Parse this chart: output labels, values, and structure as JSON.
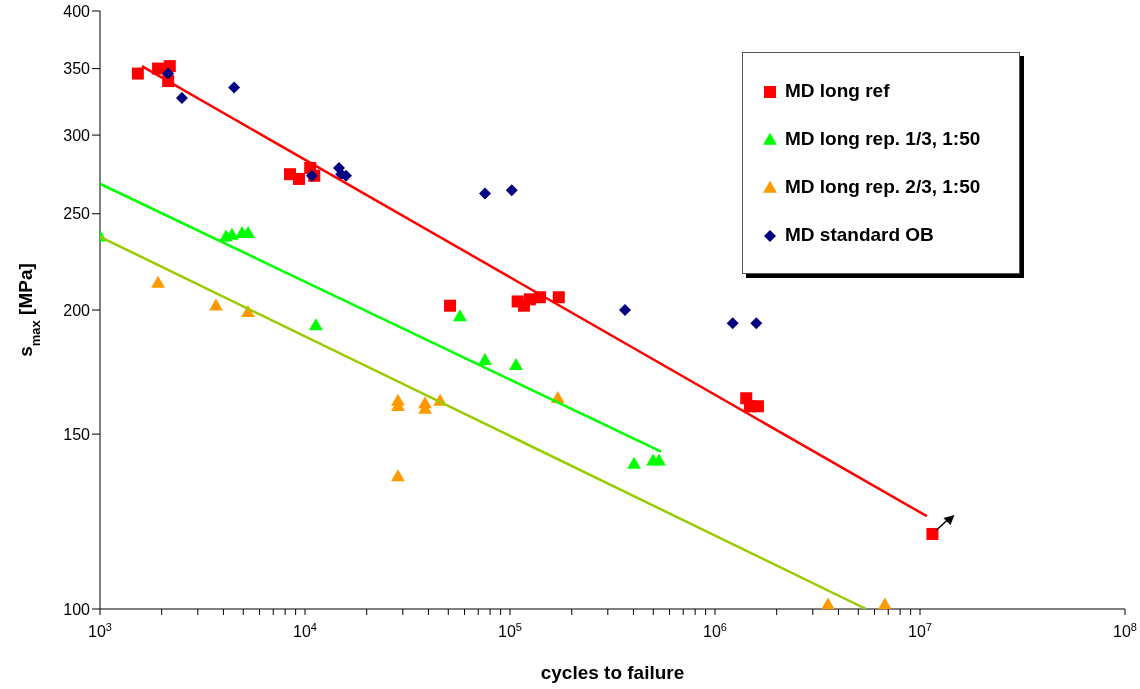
{
  "chart_data": {
    "type": "scatter",
    "xlabel": "cycles to failure",
    "ylabel": "s$_{max}$ [MPa]",
    "log": "xy",
    "legend": "top right",
    "xlim": [
      1000,
      100000000
    ],
    "ylim": [
      100,
      400
    ],
    "xticks": [
      {
        "value": 1000,
        "label": "10$^{3}$"
      },
      {
        "value": 2000,
        "label": null
      },
      {
        "value": 3000,
        "label": null
      },
      {
        "value": 4000,
        "label": null
      },
      {
        "value": 5000,
        "label": null
      },
      {
        "value": 6000,
        "label": null
      },
      {
        "value": 7000,
        "label": null
      },
      {
        "value": 8000,
        "label": null
      },
      {
        "value": 9000,
        "label": null
      },
      {
        "value": 10000,
        "label": "10$^{4}$"
      },
      {
        "value": 20000,
        "label": null
      },
      {
        "value": 30000,
        "label": null
      },
      {
        "value": 40000,
        "label": null
      },
      {
        "value": 50000,
        "label": null
      },
      {
        "value": 60000,
        "label": null
      },
      {
        "value": 70000,
        "label": null
      },
      {
        "value": 80000,
        "label": null
      },
      {
        "value": 90000,
        "label": null
      },
      {
        "value": 100000,
        "label": "10$^{5}$"
      },
      {
        "value": 200000,
        "label": null
      },
      {
        "value": 300000,
        "label": null
      },
      {
        "value": 400000,
        "label": null
      },
      {
        "value": 500000,
        "label": null
      },
      {
        "value": 600000,
        "label": null
      },
      {
        "value": 700000,
        "label": null
      },
      {
        "value": 800000,
        "label": null
      },
      {
        "value": 900000,
        "label": null
      },
      {
        "value": 1000000,
        "label": "10$^{6}$"
      },
      {
        "value": 2000000,
        "label": null
      },
      {
        "value": 3000000,
        "label": null
      },
      {
        "value": 4000000,
        "label": null
      },
      {
        "value": 5000000,
        "label": null
      },
      {
        "value": 6000000,
        "label": null
      },
      {
        "value": 7000000,
        "label": null
      },
      {
        "value": 8000000,
        "label": null
      },
      {
        "value": 9000000,
        "label": null
      },
      {
        "value": 10000000,
        "label": "10$^{7}$"
      },
      {
        "value": 100000000,
        "label": "10$^{8}$"
      }
    ],
    "yticks": [
      100,
      150,
      200,
      250,
      300,
      350,
      400
    ],
    "series": [
      {
        "name": "MD long ref",
        "marker": "square",
        "color": "#ff0000",
        "x": [
          1530,
          1920,
          2190,
          2150,
          8450,
          9350,
          10600,
          11100,
          51000,
          109000,
          117000,
          125000,
          140000,
          173000,
          1420000,
          1480000,
          1620000,
          11500000
        ],
        "values": [
          346,
          350,
          352,
          340,
          274,
          271,
          278,
          273,
          202,
          204,
          202,
          205,
          206,
          206,
          163,
          160,
          160,
          119
        ]
      },
      {
        "name": "MD long rep. 1/3, 1:50",
        "marker": "triangle",
        "color": "#00ff00",
        "x": [
          1000,
          4120,
          4400,
          4930,
          5280,
          11300,
          57000,
          75500,
          107000,
          403000,
          499000,
          533000
        ],
        "values": [
          237,
          237,
          238,
          239,
          239,
          193,
          197,
          178,
          176,
          140,
          141,
          141
        ]
      },
      {
        "name": "MD long rep. 2/3, 1:50",
        "marker": "triangle",
        "color": "#ff9900",
        "x": [
          1920,
          3680,
          5270,
          28400,
          28400,
          38500,
          38500,
          45600,
          171000,
          28400,
          3560000,
          6740000
        ],
        "values": [
          213,
          202,
          199,
          162,
          160,
          161,
          159,
          162,
          163,
          136,
          101,
          101
        ]
      },
      {
        "name": "MD standard OB",
        "marker": "diamond",
        "color": "#000080",
        "x": [
          2150,
          2510,
          4510,
          10800,
          14650,
          15000,
          15850,
          75500,
          102000,
          364000,
          1220000,
          1590000
        ],
        "values": [
          346,
          327,
          335,
          273,
          278,
          274,
          273,
          262,
          264,
          200,
          194,
          194
        ]
      },
      {
        "type": "line",
        "marker": "none",
        "color": "#ff0000",
        "x": [
          1600,
          10800000
        ],
        "values": [
          352,
          124
        ]
      },
      {
        "type": "line",
        "marker": "none",
        "color": "#00ff00",
        "x": [
          1000,
          546000
        ],
        "values": [
          268,
          144
        ]
      },
      {
        "type": "line",
        "marker": "none",
        "color": "#99cc00",
        "x": [
          1000,
          5460000
        ],
        "values": [
          237,
          100
        ]
      }
    ]
  }
}
